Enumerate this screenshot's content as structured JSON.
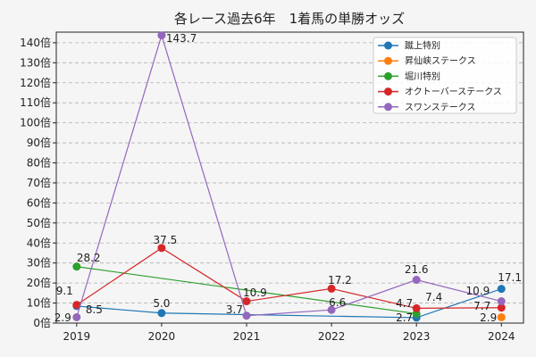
{
  "chart_data": {
    "type": "line",
    "title": "各レース過去6年　1着馬の単勝オッズ",
    "xlabel": "",
    "ylabel": "",
    "x": [
      2019,
      2020,
      2021,
      2022,
      2023,
      2024
    ],
    "x_tick_labels": [
      "2019",
      "2020",
      "2021",
      "2022",
      "2023",
      "2024"
    ],
    "ylim": [
      0,
      145
    ],
    "y_ticks": [
      0,
      10,
      20,
      30,
      40,
      50,
      60,
      70,
      80,
      90,
      100,
      110,
      120,
      130,
      140
    ],
    "y_tick_suffix": "倍",
    "grid": "horizontal dashed",
    "legend_position": "top-right",
    "series": [
      {
        "name": "蹴上特別",
        "color": "#1f77b4",
        "values": [
          8.5,
          5.0,
          null,
          null,
          2.7,
          17.1
        ]
      },
      {
        "name": "昇仙峡ステークス",
        "color": "#ff7f0e",
        "values": [
          null,
          null,
          null,
          null,
          null,
          2.9
        ]
      },
      {
        "name": "堀川特別",
        "color": "#2ca02c",
        "values": [
          28.2,
          null,
          null,
          null,
          4.7,
          null
        ]
      },
      {
        "name": "オクトーバーステークス",
        "color": "#d62728",
        "values": [
          9.1,
          37.5,
          10.9,
          17.2,
          7.4,
          7.7
        ]
      },
      {
        "name": "スワンステークス",
        "color": "#9467bd",
        "values": [
          2.9,
          143.7,
          3.7,
          6.6,
          21.6,
          10.9
        ]
      }
    ]
  }
}
